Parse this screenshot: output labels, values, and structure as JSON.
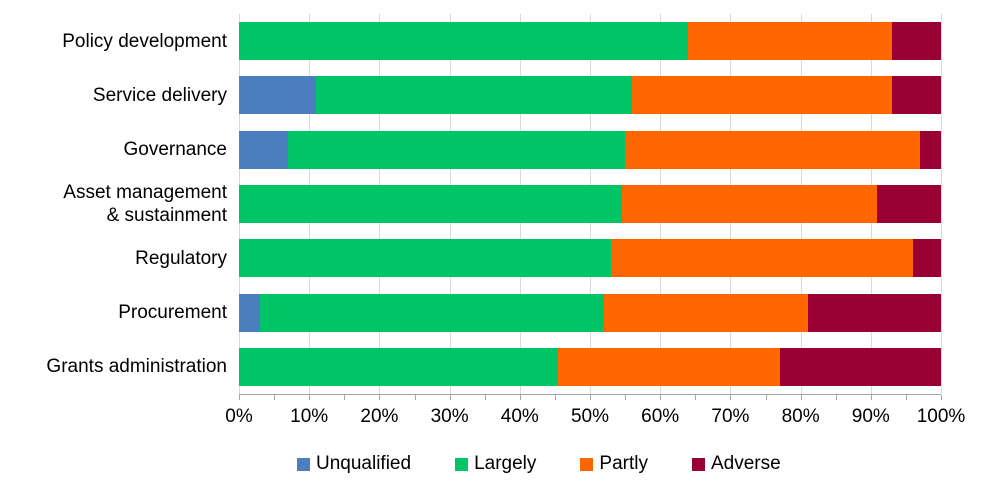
{
  "chart_data": {
    "type": "bar",
    "orientation": "horizontal",
    "stacked": true,
    "unit": "percent",
    "title": "",
    "xlabel": "",
    "ylabel": "",
    "grid": "vertical-only",
    "categories": [
      "Policy development",
      "Service delivery",
      "Governance",
      "Asset management\n& sustainment",
      "Regulatory",
      "Procurement",
      "Grants administration"
    ],
    "series": [
      {
        "name": "Unqualified",
        "color": "#4A7EBF",
        "values": [
          0,
          11,
          7,
          0,
          0,
          3,
          0
        ]
      },
      {
        "name": "Largely",
        "color": "#00C566",
        "values": [
          64,
          45,
          48,
          54.5,
          53,
          49,
          45.5
        ]
      },
      {
        "name": "Partly",
        "color": "#FF6600",
        "values": [
          29,
          37,
          42,
          36.4,
          43,
          29,
          31.5
        ]
      },
      {
        "name": "Adverse",
        "color": "#990033",
        "values": [
          7,
          7,
          3,
          9.1,
          4,
          19,
          23
        ]
      }
    ],
    "x_axis": {
      "min": 0,
      "max": 100,
      "major_tick_interval": 10,
      "minor_tick_interval": 5,
      "tick_labels": [
        "0%",
        "10%",
        "20%",
        "30%",
        "40%",
        "50%",
        "60%",
        "70%",
        "80%",
        "90%",
        "100%"
      ]
    },
    "legend": {
      "position": "bottom",
      "entries": [
        "Unqualified",
        "Largely",
        "Partly",
        "Adverse"
      ]
    },
    "style_colors": {
      "gridline": "#D9D9D9",
      "axis_line": "#A6A6A6",
      "text": "#000000",
      "background": "#FFFFFF"
    }
  }
}
